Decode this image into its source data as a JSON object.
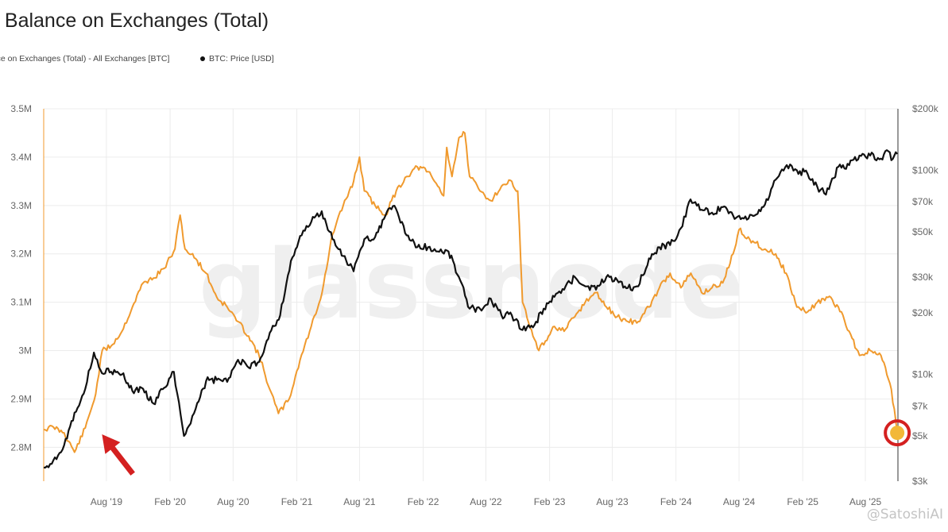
{
  "chart_data": {
    "type": "line",
    "title": ": Balance on Exchanges (Total)",
    "legend_position": "top-left",
    "grid": true,
    "watermark": "glassnode",
    "series": [
      {
        "name": "ance on Exchanges (Total) - All Exchanges [BTC]",
        "axis": "left",
        "color": "#f09a2e",
        "points": [
          [
            "2019-02-01",
            2.837
          ],
          [
            "2019-03-01",
            2.842
          ],
          [
            "2019-04-01",
            2.83
          ],
          [
            "2019-05-01",
            2.79
          ],
          [
            "2019-06-01",
            2.84
          ],
          [
            "2019-07-01",
            2.91
          ],
          [
            "2019-07-20",
            3.0
          ],
          [
            "2019-08-15",
            3.01
          ],
          [
            "2019-09-15",
            3.04
          ],
          [
            "2019-10-15",
            3.09
          ],
          [
            "2019-11-15",
            3.14
          ],
          [
            "2019-12-15",
            3.15
          ],
          [
            "2020-01-15",
            3.17
          ],
          [
            "2020-02-15",
            3.21
          ],
          [
            "2020-03-01",
            3.28
          ],
          [
            "2020-03-15",
            3.21
          ],
          [
            "2020-04-15",
            3.19
          ],
          [
            "2020-05-15",
            3.16
          ],
          [
            "2020-06-15",
            3.11
          ],
          [
            "2020-07-15",
            3.09
          ],
          [
            "2020-08-15",
            3.06
          ],
          [
            "2020-09-15",
            3.03
          ],
          [
            "2020-10-15",
            2.99
          ],
          [
            "2020-11-15",
            2.92
          ],
          [
            "2020-12-10",
            2.87
          ],
          [
            "2021-01-10",
            2.9
          ],
          [
            "2021-02-10",
            2.98
          ],
          [
            "2021-03-10",
            3.04
          ],
          [
            "2021-04-15",
            3.12
          ],
          [
            "2021-05-15",
            3.24
          ],
          [
            "2021-06-15",
            3.3
          ],
          [
            "2021-07-15",
            3.35
          ],
          [
            "2021-08-01",
            3.4
          ],
          [
            "2021-08-15",
            3.33
          ],
          [
            "2021-09-15",
            3.3
          ],
          [
            "2021-10-15",
            3.28
          ],
          [
            "2021-11-15",
            3.33
          ],
          [
            "2021-12-15",
            3.36
          ],
          [
            "2022-01-15",
            3.38
          ],
          [
            "2022-02-15",
            3.37
          ],
          [
            "2022-03-15",
            3.34
          ],
          [
            "2022-04-01",
            3.32
          ],
          [
            "2022-04-10",
            3.42
          ],
          [
            "2022-04-25",
            3.36
          ],
          [
            "2022-05-15",
            3.44
          ],
          [
            "2022-06-01",
            3.45
          ],
          [
            "2022-06-15",
            3.36
          ],
          [
            "2022-07-15",
            3.33
          ],
          [
            "2022-08-15",
            3.31
          ],
          [
            "2022-09-15",
            3.34
          ],
          [
            "2022-10-15",
            3.35
          ],
          [
            "2022-11-01",
            3.33
          ],
          [
            "2022-11-15",
            3.1
          ],
          [
            "2022-12-15",
            3.03
          ],
          [
            "2023-01-01",
            3.0
          ],
          [
            "2023-01-20",
            3.02
          ],
          [
            "2023-02-15",
            3.05
          ],
          [
            "2023-03-15",
            3.04
          ],
          [
            "2023-04-15",
            3.07
          ],
          [
            "2023-05-15",
            3.1
          ],
          [
            "2023-06-15",
            3.12
          ],
          [
            "2023-07-15",
            3.09
          ],
          [
            "2023-08-15",
            3.07
          ],
          [
            "2023-09-15",
            3.06
          ],
          [
            "2023-10-15",
            3.06
          ],
          [
            "2023-11-15",
            3.09
          ],
          [
            "2023-12-15",
            3.13
          ],
          [
            "2024-01-15",
            3.16
          ],
          [
            "2024-02-15",
            3.13
          ],
          [
            "2024-03-15",
            3.16
          ],
          [
            "2024-04-15",
            3.12
          ],
          [
            "2024-05-15",
            3.13
          ],
          [
            "2024-06-15",
            3.14
          ],
          [
            "2024-07-15",
            3.2
          ],
          [
            "2024-08-01",
            3.25
          ],
          [
            "2024-09-01",
            3.23
          ],
          [
            "2024-10-15",
            3.21
          ],
          [
            "2024-11-15",
            3.2
          ],
          [
            "2024-12-15",
            3.16
          ],
          [
            "2025-01-15",
            3.09
          ],
          [
            "2025-02-15",
            3.08
          ],
          [
            "2025-03-15",
            3.1
          ],
          [
            "2025-04-15",
            3.11
          ],
          [
            "2025-05-15",
            3.09
          ],
          [
            "2025-06-15",
            3.04
          ],
          [
            "2025-07-15",
            2.99
          ],
          [
            "2025-08-15",
            3.0
          ],
          [
            "2025-09-15",
            2.99
          ],
          [
            "2025-10-15",
            2.92
          ],
          [
            "2025-11-01",
            2.83
          ]
        ]
      },
      {
        "name": "BTC: Price [USD]",
        "axis": "right",
        "color": "#111111",
        "points": [
          [
            "2019-02-01",
            3500
          ],
          [
            "2019-03-01",
            3800
          ],
          [
            "2019-04-01",
            4500
          ],
          [
            "2019-05-01",
            6500
          ],
          [
            "2019-06-01",
            8500
          ],
          [
            "2019-06-26",
            12800
          ],
          [
            "2019-07-15",
            10500
          ],
          [
            "2019-08-15",
            10300
          ],
          [
            "2019-09-15",
            10000
          ],
          [
            "2019-10-15",
            8300
          ],
          [
            "2019-11-15",
            8500
          ],
          [
            "2019-12-15",
            7200
          ],
          [
            "2020-01-15",
            8600
          ],
          [
            "2020-02-12",
            10300
          ],
          [
            "2020-03-12",
            5000
          ],
          [
            "2020-04-15",
            6800
          ],
          [
            "2020-05-15",
            9300
          ],
          [
            "2020-06-15",
            9400
          ],
          [
            "2020-07-15",
            9200
          ],
          [
            "2020-08-15",
            11800
          ],
          [
            "2020-09-15",
            10800
          ],
          [
            "2020-10-15",
            11500
          ],
          [
            "2020-11-15",
            16000
          ],
          [
            "2020-12-15",
            19500
          ],
          [
            "2021-01-15",
            36000
          ],
          [
            "2021-02-15",
            48000
          ],
          [
            "2021-03-15",
            56000
          ],
          [
            "2021-04-14",
            63000
          ],
          [
            "2021-05-15",
            46000
          ],
          [
            "2021-06-15",
            38000
          ],
          [
            "2021-07-15",
            32000
          ],
          [
            "2021-08-15",
            46000
          ],
          [
            "2021-09-15",
            47000
          ],
          [
            "2021-10-15",
            60000
          ],
          [
            "2021-11-10",
            67000
          ],
          [
            "2021-12-15",
            48000
          ],
          [
            "2022-01-15",
            42000
          ],
          [
            "2022-02-15",
            42000
          ],
          [
            "2022-03-15",
            40000
          ],
          [
            "2022-04-15",
            40000
          ],
          [
            "2022-05-15",
            30000
          ],
          [
            "2022-06-15",
            21000
          ],
          [
            "2022-07-15",
            21000
          ],
          [
            "2022-08-15",
            23500
          ],
          [
            "2022-09-15",
            19500
          ],
          [
            "2022-10-15",
            19500
          ],
          [
            "2022-11-15",
            16500
          ],
          [
            "2022-12-15",
            17000
          ],
          [
            "2023-01-15",
            21000
          ],
          [
            "2023-02-15",
            24000
          ],
          [
            "2023-03-15",
            26000
          ],
          [
            "2023-04-15",
            30000
          ],
          [
            "2023-05-15",
            27000
          ],
          [
            "2023-06-15",
            26000
          ],
          [
            "2023-07-15",
            30000
          ],
          [
            "2023-08-15",
            29000
          ],
          [
            "2023-09-15",
            26500
          ],
          [
            "2023-10-15",
            27000
          ],
          [
            "2023-11-15",
            37000
          ],
          [
            "2023-12-15",
            42000
          ],
          [
            "2024-01-15",
            43000
          ],
          [
            "2024-02-15",
            52000
          ],
          [
            "2024-03-14",
            72000
          ],
          [
            "2024-04-15",
            64000
          ],
          [
            "2024-05-15",
            62000
          ],
          [
            "2024-06-15",
            66000
          ],
          [
            "2024-07-15",
            60000
          ],
          [
            "2024-08-15",
            58000
          ],
          [
            "2024-09-15",
            60000
          ],
          [
            "2024-10-15",
            68000
          ],
          [
            "2024-11-15",
            90000
          ],
          [
            "2024-12-17",
            106000
          ],
          [
            "2025-01-15",
            100000
          ],
          [
            "2025-02-15",
            96000
          ],
          [
            "2025-03-15",
            83000
          ],
          [
            "2025-04-09",
            76000
          ],
          [
            "2025-05-15",
            104000
          ],
          [
            "2025-06-15",
            106000
          ],
          [
            "2025-07-15",
            118000
          ],
          [
            "2025-08-15",
            118000
          ],
          [
            "2025-09-15",
            114000
          ],
          [
            "2025-10-06",
            124000
          ],
          [
            "2025-10-15",
            112000
          ],
          [
            "2025-11-01",
            120000
          ]
        ]
      }
    ],
    "x_ticks": [
      {
        "label": "Aug '19",
        "date": "2019-08-01"
      },
      {
        "label": "Feb '20",
        "date": "2020-02-01"
      },
      {
        "label": "Aug '20",
        "date": "2020-08-01"
      },
      {
        "label": "Feb '21",
        "date": "2021-02-01"
      },
      {
        "label": "Aug '21",
        "date": "2021-08-01"
      },
      {
        "label": "Feb '22",
        "date": "2022-02-01"
      },
      {
        "label": "Aug '22",
        "date": "2022-08-01"
      },
      {
        "label": "Feb '23",
        "date": "2023-02-01"
      },
      {
        "label": "Aug '23",
        "date": "2023-08-01"
      },
      {
        "label": "Feb '24",
        "date": "2024-02-01"
      },
      {
        "label": "Aug '24",
        "date": "2024-08-01"
      },
      {
        "label": "Feb '25",
        "date": "2025-02-01"
      },
      {
        "label": "Aug '25",
        "date": "2025-08-01"
      }
    ],
    "x_range": [
      "2019-02-01",
      "2025-11-03"
    ],
    "y_left": {
      "scale": "linear",
      "range": [
        2.73,
        3.5
      ],
      "ticks": [
        {
          "label": "3.5M",
          "value": 3.5
        },
        {
          "label": "3.4M",
          "value": 3.4
        },
        {
          "label": "3.3M",
          "value": 3.3
        },
        {
          "label": "3.2M",
          "value": 3.2
        },
        {
          "label": "3.1M",
          "value": 3.1
        },
        {
          "label": "3M",
          "value": 3.0
        },
        {
          "label": "2.9M",
          "value": 2.9
        },
        {
          "label": "2.8M",
          "value": 2.8
        }
      ]
    },
    "y_right": {
      "scale": "log",
      "range": [
        3000,
        200000
      ],
      "ticks": [
        {
          "label": "$200k",
          "value": 200000
        },
        {
          "label": "$100k",
          "value": 100000
        },
        {
          "label": "$70k",
          "value": 70000
        },
        {
          "label": "$50k",
          "value": 50000
        },
        {
          "label": "$30k",
          "value": 30000
        },
        {
          "label": "$20k",
          "value": 20000
        },
        {
          "label": "$10k",
          "value": 10000
        },
        {
          "label": "$7k",
          "value": 7000
        },
        {
          "label": "$5k",
          "value": 5000
        },
        {
          "label": "$3k",
          "value": 3000
        }
      ]
    },
    "annotations": [
      {
        "type": "arrow",
        "color": "#d42020",
        "target_date": "2019-07-01",
        "target_value": 2.84
      },
      {
        "type": "circle",
        "color": "#d42020",
        "target_date": "2025-11-01",
        "target_value": 2.83
      }
    ]
  },
  "watermark_handle": "@SatoshiAI"
}
